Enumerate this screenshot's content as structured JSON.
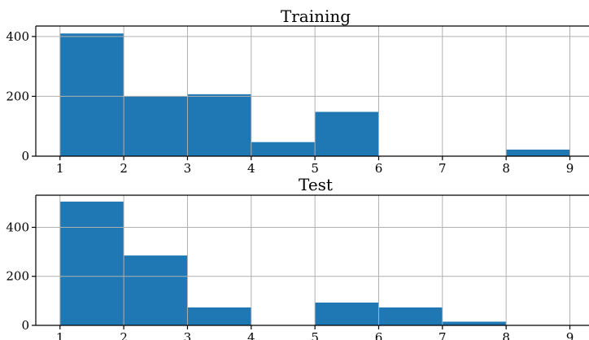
{
  "chart_data": [
    {
      "type": "bar",
      "title": "Training",
      "bins": [
        {
          "x0": 1,
          "x1": 2,
          "value": 410
        },
        {
          "x0": 2,
          "x1": 3,
          "value": 200
        },
        {
          "x0": 3,
          "x1": 4,
          "value": 207
        },
        {
          "x0": 4,
          "x1": 5,
          "value": 47
        },
        {
          "x0": 5,
          "x1": 6,
          "value": 148
        },
        {
          "x0": 6,
          "x1": 7,
          "value": 0
        },
        {
          "x0": 7,
          "x1": 8,
          "value": 0
        },
        {
          "x0": 8,
          "x1": 9,
          "value": 22
        }
      ],
      "xticks": [
        1,
        2,
        3,
        4,
        5,
        6,
        7,
        8,
        9
      ],
      "yticks": [
        0,
        200,
        400
      ],
      "xlim": [
        0.62,
        9.3
      ],
      "ylim": [
        0,
        435
      ],
      "grid": true,
      "bar_color": "#1f77b4"
    },
    {
      "type": "bar",
      "title": "Test",
      "bins": [
        {
          "x0": 1,
          "x1": 2,
          "value": 505
        },
        {
          "x0": 2,
          "x1": 3,
          "value": 285
        },
        {
          "x0": 3,
          "x1": 4,
          "value": 73
        },
        {
          "x0": 4,
          "x1": 5,
          "value": 0
        },
        {
          "x0": 5,
          "x1": 6,
          "value": 93
        },
        {
          "x0": 6,
          "x1": 7,
          "value": 73
        },
        {
          "x0": 7,
          "x1": 8,
          "value": 15
        },
        {
          "x0": 8,
          "x1": 9,
          "value": 0
        }
      ],
      "xticks": [
        1,
        2,
        3,
        4,
        5,
        6,
        7,
        8,
        9
      ],
      "yticks": [
        0,
        200,
        400
      ],
      "xlim": [
        0.62,
        9.3
      ],
      "ylim": [
        0,
        531
      ],
      "grid": true,
      "bar_color": "#1f77b4"
    }
  ]
}
